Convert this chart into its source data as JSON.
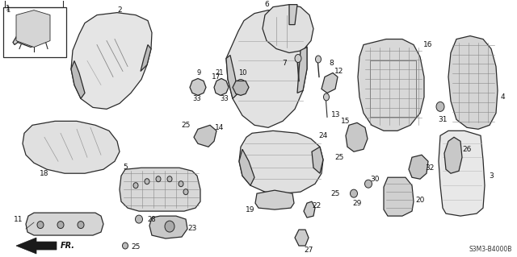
{
  "diagram_code": "S3M3-B4000B",
  "background_color": "#ffffff",
  "ec": "#2a2a2a",
  "fc_light": "#e8e8e8",
  "fc_mid": "#d5d5d5",
  "fc_dark": "#c0c0c0",
  "lw_main": 0.9,
  "lw_thin": 0.5
}
